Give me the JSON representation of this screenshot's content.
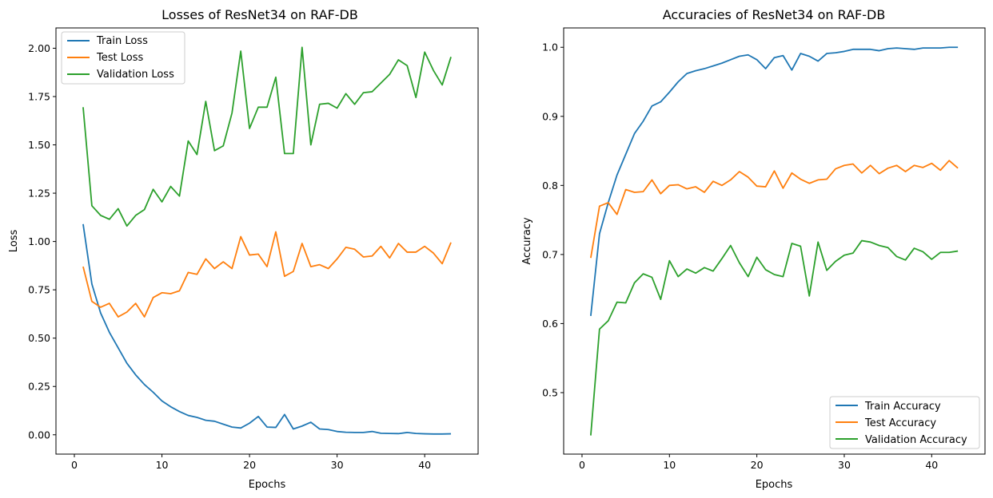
{
  "chart_data": [
    {
      "type": "line",
      "title": "Losses of ResNet34 on RAF-DB",
      "xlabel": "Epochs",
      "ylabel": "Loss",
      "xlim": [
        -2.1,
        46.1
      ],
      "ylim": [
        -0.1,
        2.105
      ],
      "xticks": [
        0,
        10,
        20,
        30,
        40
      ],
      "yticks": [
        0.0,
        0.25,
        0.5,
        0.75,
        1.0,
        1.25,
        1.5,
        1.75,
        2.0
      ],
      "ytick_format": 2,
      "grid": false,
      "legend_position": "top-left",
      "x": [
        1,
        2,
        3,
        4,
        5,
        6,
        7,
        8,
        9,
        10,
        11,
        12,
        13,
        14,
        15,
        16,
        17,
        18,
        19,
        20,
        21,
        22,
        23,
        24,
        25,
        26,
        27,
        28,
        29,
        30,
        31,
        32,
        33,
        34,
        35,
        36,
        37,
        38,
        39,
        40,
        41,
        42,
        43
      ],
      "series": [
        {
          "name": "Train Loss",
          "color": "#1f77b4",
          "values": [
            1.09,
            0.78,
            0.63,
            0.53,
            0.45,
            0.37,
            0.31,
            0.26,
            0.22,
            0.175,
            0.145,
            0.12,
            0.1,
            0.09,
            0.075,
            0.07,
            0.055,
            0.04,
            0.035,
            0.06,
            0.095,
            0.04,
            0.038,
            0.105,
            0.03,
            0.045,
            0.065,
            0.03,
            0.027,
            0.017,
            0.013,
            0.012,
            0.012,
            0.017,
            0.008,
            0.007,
            0.006,
            0.012,
            0.007,
            0.005,
            0.004,
            0.004,
            0.005
          ]
        },
        {
          "name": "Test Loss",
          "color": "#ff7f0e",
          "values": [
            0.87,
            0.69,
            0.66,
            0.68,
            0.61,
            0.635,
            0.68,
            0.61,
            0.71,
            0.735,
            0.73,
            0.745,
            0.84,
            0.83,
            0.91,
            0.86,
            0.895,
            0.86,
            1.025,
            0.93,
            0.935,
            0.87,
            1.05,
            0.82,
            0.845,
            0.99,
            0.87,
            0.88,
            0.86,
            0.91,
            0.97,
            0.96,
            0.92,
            0.925,
            0.975,
            0.915,
            0.99,
            0.945,
            0.945,
            0.975,
            0.94,
            0.885,
            0.995
          ]
        },
        {
          "name": "Validation Loss",
          "color": "#2ca02c",
          "values": [
            1.695,
            1.185,
            1.135,
            1.115,
            1.17,
            1.08,
            1.135,
            1.165,
            1.27,
            1.205,
            1.285,
            1.235,
            1.52,
            1.45,
            1.725,
            1.47,
            1.495,
            1.665,
            1.985,
            1.585,
            1.695,
            1.695,
            1.85,
            1.455,
            1.455,
            2.005,
            1.5,
            1.71,
            1.715,
            1.69,
            1.765,
            1.71,
            1.77,
            1.775,
            1.82,
            1.865,
            1.94,
            1.91,
            1.745,
            1.98,
            1.885,
            1.81,
            1.955
          ]
        }
      ]
    },
    {
      "type": "line",
      "title": "Accuracies of ResNet34 on RAF-DB",
      "xlabel": "Epochs",
      "ylabel": "Accuracy",
      "xlim": [
        -2.1,
        46.1
      ],
      "ylim": [
        0.411,
        1.028
      ],
      "xticks": [
        0,
        10,
        20,
        30,
        40
      ],
      "yticks": [
        0.5,
        0.6,
        0.7,
        0.8,
        0.9,
        1.0
      ],
      "ytick_format": 1,
      "grid": false,
      "legend_position": "bottom-right",
      "x": [
        1,
        2,
        3,
        4,
        5,
        6,
        7,
        8,
        9,
        10,
        11,
        12,
        13,
        14,
        15,
        16,
        17,
        18,
        19,
        20,
        21,
        22,
        23,
        24,
        25,
        26,
        27,
        28,
        29,
        30,
        31,
        32,
        33,
        34,
        35,
        36,
        37,
        38,
        39,
        40,
        41,
        42,
        43
      ],
      "series": [
        {
          "name": "Train Accuracy",
          "color": "#1f77b4",
          "values": [
            0.611,
            0.73,
            0.775,
            0.815,
            0.845,
            0.875,
            0.893,
            0.915,
            0.921,
            0.935,
            0.95,
            0.962,
            0.966,
            0.969,
            0.973,
            0.977,
            0.982,
            0.987,
            0.989,
            0.982,
            0.969,
            0.985,
            0.988,
            0.967,
            0.991,
            0.987,
            0.98,
            0.991,
            0.992,
            0.994,
            0.997,
            0.997,
            0.997,
            0.995,
            0.998,
            0.999,
            0.998,
            0.997,
            0.999,
            0.999,
            0.999,
            1.0,
            1.0
          ]
        },
        {
          "name": "Test Accuracy",
          "color": "#ff7f0e",
          "values": [
            0.695,
            0.77,
            0.775,
            0.758,
            0.794,
            0.79,
            0.791,
            0.808,
            0.788,
            0.8,
            0.801,
            0.795,
            0.798,
            0.79,
            0.806,
            0.8,
            0.808,
            0.82,
            0.812,
            0.799,
            0.798,
            0.821,
            0.796,
            0.818,
            0.809,
            0.803,
            0.808,
            0.809,
            0.824,
            0.829,
            0.831,
            0.818,
            0.829,
            0.817,
            0.825,
            0.829,
            0.82,
            0.829,
            0.826,
            0.832,
            0.822,
            0.836,
            0.825
          ]
        },
        {
          "name": "Validation Accuracy",
          "color": "#2ca02c",
          "values": [
            0.438,
            0.592,
            0.604,
            0.631,
            0.63,
            0.659,
            0.672,
            0.667,
            0.635,
            0.691,
            0.668,
            0.679,
            0.673,
            0.681,
            0.676,
            0.694,
            0.713,
            0.688,
            0.668,
            0.696,
            0.678,
            0.671,
            0.668,
            0.716,
            0.712,
            0.64,
            0.718,
            0.677,
            0.69,
            0.699,
            0.702,
            0.72,
            0.718,
            0.713,
            0.71,
            0.697,
            0.692,
            0.709,
            0.704,
            0.693,
            0.703,
            0.703,
            0.705
          ]
        }
      ]
    }
  ]
}
